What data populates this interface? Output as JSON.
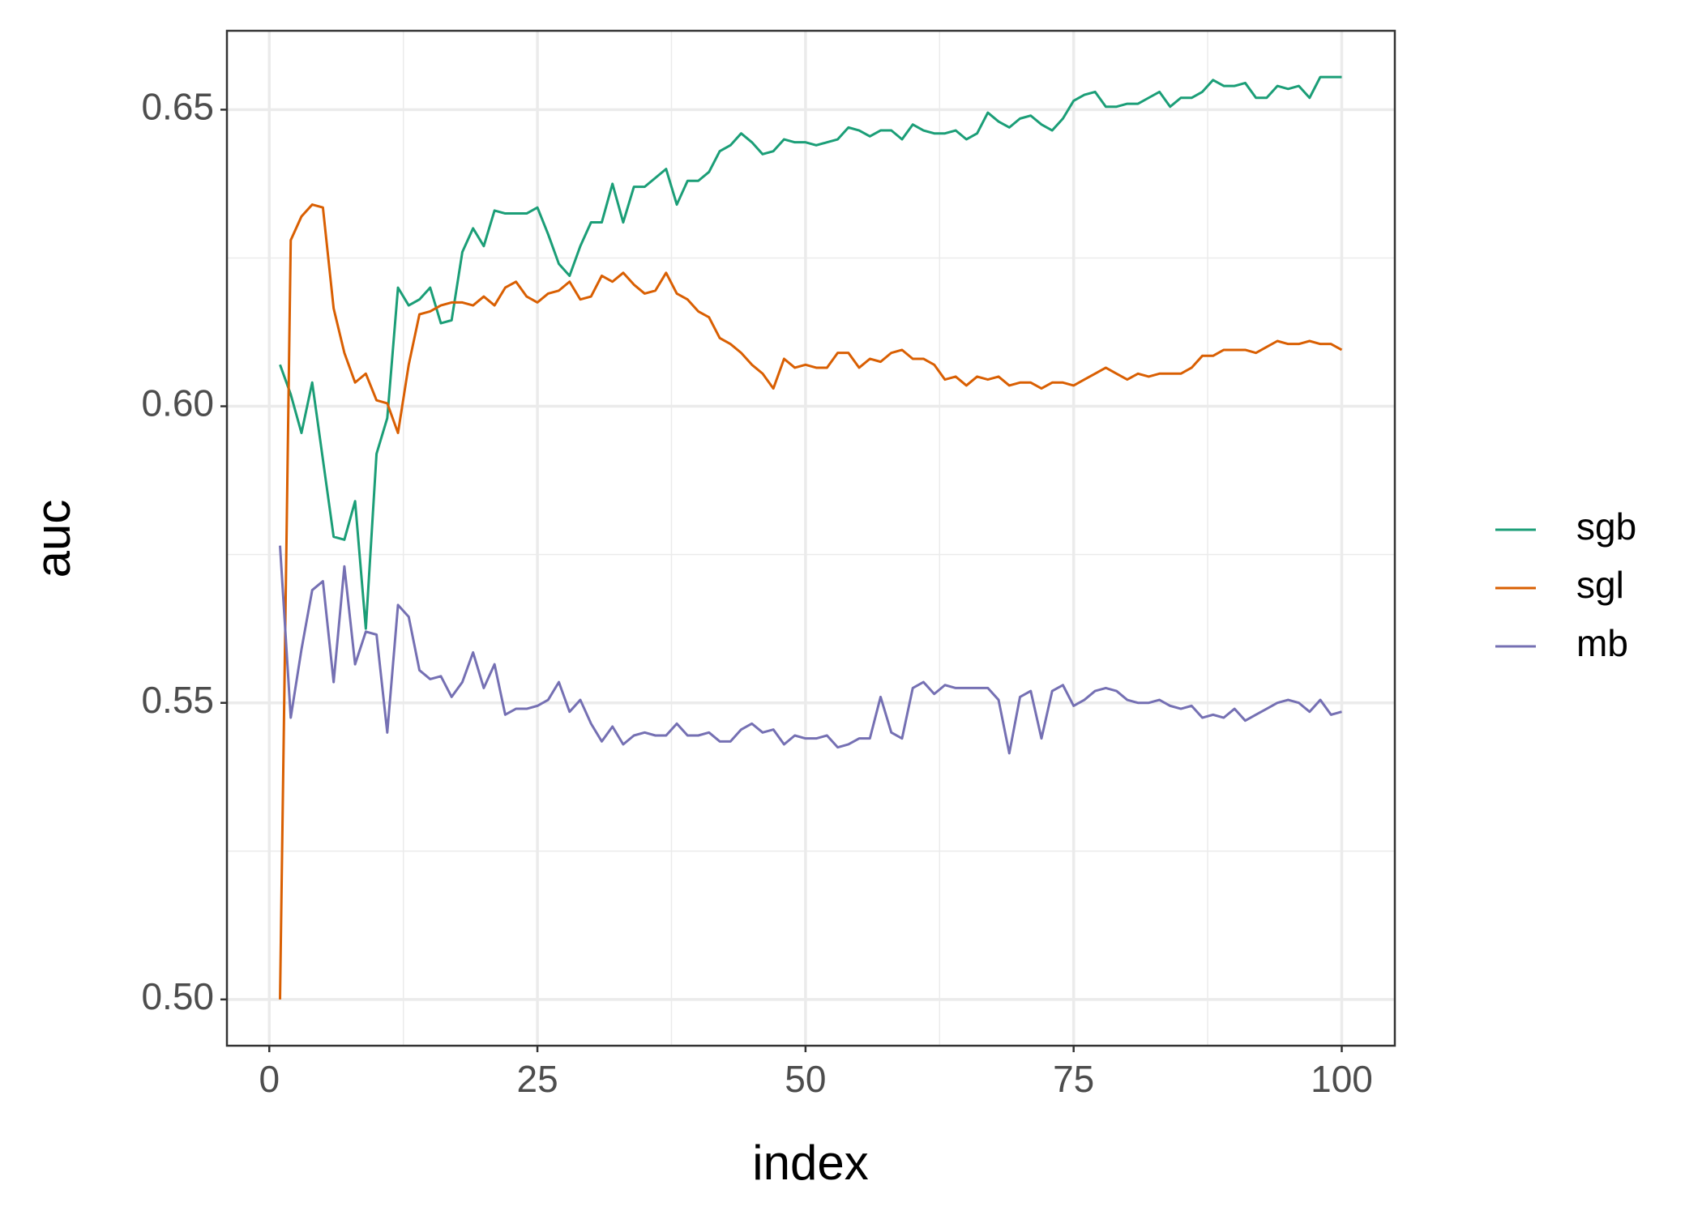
{
  "chart_data": {
    "type": "line",
    "xlabel": "index",
    "ylabel": "auc",
    "x": [
      1,
      2,
      3,
      4,
      5,
      6,
      7,
      8,
      9,
      10,
      11,
      12,
      13,
      14,
      15,
      16,
      17,
      18,
      19,
      20,
      21,
      22,
      23,
      24,
      25,
      26,
      27,
      28,
      29,
      30,
      31,
      32,
      33,
      34,
      35,
      36,
      37,
      38,
      39,
      40,
      41,
      42,
      43,
      44,
      45,
      46,
      47,
      48,
      49,
      50,
      51,
      52,
      53,
      54,
      55,
      56,
      57,
      58,
      59,
      60,
      61,
      62,
      63,
      64,
      65,
      66,
      67,
      68,
      69,
      70,
      71,
      72,
      73,
      74,
      75,
      76,
      77,
      78,
      79,
      80,
      81,
      82,
      83,
      84,
      85,
      86,
      87,
      88,
      89,
      90,
      91,
      92,
      93,
      94,
      95,
      96,
      97,
      98,
      99,
      100
    ],
    "series": [
      {
        "name": "sgb",
        "color": "#1b9e77",
        "values": [
          0.607,
          0.602,
          0.5955,
          0.604,
          0.591,
          0.578,
          0.5775,
          0.584,
          0.5625,
          0.592,
          0.598,
          0.62,
          0.617,
          0.618,
          0.62,
          0.614,
          0.6145,
          0.626,
          0.63,
          0.627,
          0.633,
          0.6325,
          0.6325,
          0.6325,
          0.6335,
          0.629,
          0.624,
          0.622,
          0.627,
          0.631,
          0.631,
          0.6375,
          0.631,
          0.637,
          0.637,
          0.6385,
          0.64,
          0.634,
          0.638,
          0.638,
          0.6395,
          0.643,
          0.644,
          0.646,
          0.6445,
          0.6425,
          0.643,
          0.645,
          0.6445,
          0.6445,
          0.644,
          0.6445,
          0.645,
          0.647,
          0.6465,
          0.6455,
          0.6465,
          0.6465,
          0.645,
          0.6475,
          0.6465,
          0.646,
          0.646,
          0.6465,
          0.645,
          0.646,
          0.6495,
          0.648,
          0.647,
          0.6485,
          0.649,
          0.6475,
          0.6465,
          0.6485,
          0.6515,
          0.6525,
          0.653,
          0.6505,
          0.6505,
          0.651,
          0.651,
          0.652,
          0.653,
          0.6505,
          0.652,
          0.652,
          0.653,
          0.655,
          0.654,
          0.654,
          0.6545,
          0.652,
          0.652,
          0.654,
          0.6535,
          0.654,
          0.652,
          0.6555,
          0.6555,
          0.6555
        ]
      },
      {
        "name": "sgl",
        "color": "#d95f02",
        "values": [
          0.5,
          0.628,
          0.632,
          0.634,
          0.6335,
          0.6165,
          0.609,
          0.604,
          0.6055,
          0.601,
          0.6005,
          0.5955,
          0.607,
          0.6155,
          0.616,
          0.617,
          0.6175,
          0.6175,
          0.617,
          0.6185,
          0.617,
          0.62,
          0.621,
          0.6185,
          0.6175,
          0.619,
          0.6195,
          0.621,
          0.618,
          0.6185,
          0.622,
          0.621,
          0.6225,
          0.6205,
          0.619,
          0.6195,
          0.6225,
          0.619,
          0.618,
          0.616,
          0.615,
          0.6115,
          0.6105,
          0.609,
          0.607,
          0.6055,
          0.603,
          0.608,
          0.6065,
          0.607,
          0.6065,
          0.6065,
          0.609,
          0.609,
          0.6065,
          0.608,
          0.6075,
          0.609,
          0.6095,
          0.608,
          0.608,
          0.607,
          0.6045,
          0.605,
          0.6035,
          0.605,
          0.6045,
          0.605,
          0.6035,
          0.604,
          0.604,
          0.603,
          0.604,
          0.604,
          0.6035,
          0.6045,
          0.6055,
          0.6065,
          0.6055,
          0.6045,
          0.6055,
          0.605,
          0.6055,
          0.6055,
          0.6055,
          0.6065,
          0.6085,
          0.6085,
          0.6095,
          0.6095,
          0.6095,
          0.609,
          0.61,
          0.611,
          0.6105,
          0.6105,
          0.611,
          0.6105,
          0.6105,
          0.6095
        ]
      },
      {
        "name": "mb",
        "color": "#7570b3",
        "values": [
          0.5765,
          0.5475,
          0.559,
          0.569,
          0.5705,
          0.5535,
          0.573,
          0.5565,
          0.562,
          0.5615,
          0.545,
          0.5665,
          0.5645,
          0.5555,
          0.554,
          0.5545,
          0.551,
          0.5535,
          0.5585,
          0.5525,
          0.5565,
          0.548,
          0.549,
          0.549,
          0.5495,
          0.5505,
          0.5535,
          0.5485,
          0.5505,
          0.5465,
          0.5435,
          0.546,
          0.543,
          0.5445,
          0.545,
          0.5445,
          0.5445,
          0.5465,
          0.5445,
          0.5445,
          0.545,
          0.5435,
          0.5435,
          0.5455,
          0.5465,
          0.545,
          0.5455,
          0.543,
          0.5445,
          0.544,
          0.544,
          0.5445,
          0.5425,
          0.543,
          0.544,
          0.544,
          0.551,
          0.545,
          0.544,
          0.5525,
          0.5535,
          0.5515,
          0.553,
          0.5525,
          0.5525,
          0.5525,
          0.5525,
          0.5505,
          0.5415,
          0.551,
          0.552,
          0.544,
          0.552,
          0.553,
          0.5495,
          0.5505,
          0.552,
          0.5525,
          0.552,
          0.5505,
          0.55,
          0.55,
          0.5505,
          0.5495,
          0.549,
          0.5495,
          0.5475,
          0.548,
          0.5475,
          0.549,
          0.547,
          0.548,
          0.549,
          0.55,
          0.5505,
          0.55,
          0.5485,
          0.5505,
          0.548,
          0.5485
        ]
      }
    ],
    "xlim": [
      -3.95,
      104.95
    ],
    "xticks": [
      0,
      25,
      50,
      75,
      100
    ],
    "ylim": [
      0.4922,
      0.6633
    ],
    "yticks": [
      {
        "value": 0.5,
        "label": "0.50"
      },
      0.55,
      {
        "value": 0.6,
        "label": "0.60"
      },
      0.65
    ],
    "grid": true,
    "legend": "right"
  }
}
